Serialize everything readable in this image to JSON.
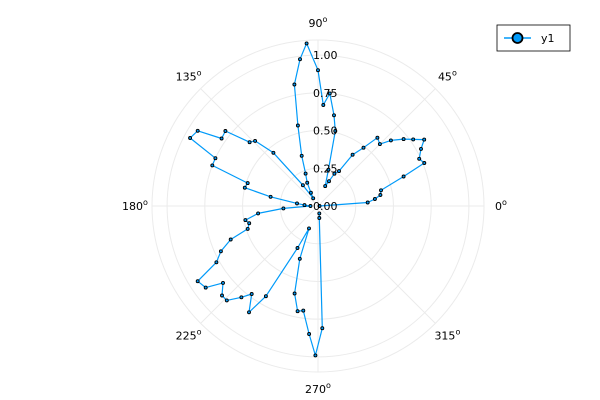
{
  "chart_data": {
    "type": "polar-line",
    "angular_unit": "degrees",
    "angle_ticks": [
      {
        "deg": 0,
        "label": "0",
        "sup": "o"
      },
      {
        "deg": 45,
        "label": "45",
        "sup": "o"
      },
      {
        "deg": 90,
        "label": "90",
        "sup": "o"
      },
      {
        "deg": 135,
        "label": "135",
        "sup": "o"
      },
      {
        "deg": 180,
        "label": "180",
        "sup": "o"
      },
      {
        "deg": 225,
        "label": "225",
        "sup": "o"
      },
      {
        "deg": 270,
        "label": "270",
        "sup": "o"
      },
      {
        "deg": 315,
        "label": "315",
        "sup": "o"
      }
    ],
    "radial_ticks": [
      {
        "value": 0.0,
        "label": "0.00"
      },
      {
        "value": 0.25,
        "label": "0.25"
      },
      {
        "value": 0.5,
        "label": "0.50"
      },
      {
        "value": 0.75,
        "label": "0.75"
      },
      {
        "value": 1.0,
        "label": "1.00"
      }
    ],
    "rlim": [
      0,
      1.1
    ],
    "grid": true,
    "legend_position": "top-right",
    "series": [
      {
        "name": "y1",
        "color": "#009af9",
        "marker": "circle",
        "points": [
          [
            0,
            0.01
          ],
          [
            4,
            0.33
          ],
          [
            7,
            0.38
          ],
          [
            10,
            0.42
          ],
          [
            14,
            0.43
          ],
          [
            19,
            0.6
          ],
          [
            22,
            0.76
          ],
          [
            25,
            0.74
          ],
          [
            29,
            0.78
          ],
          [
            32,
            0.83
          ],
          [
            35,
            0.77
          ],
          [
            38,
            0.72
          ],
          [
            42,
            0.65
          ],
          [
            45,
            0.58
          ],
          [
            49,
            0.6
          ],
          [
            52,
            0.49
          ],
          [
            56,
            0.41
          ],
          [
            59,
            0.27
          ],
          [
            63,
            0.24
          ],
          [
            66,
            0.18
          ],
          [
            70,
            0.14
          ],
          [
            74,
            0.25
          ],
          [
            77,
            0.51
          ],
          [
            80,
            0.61
          ],
          [
            84,
            0.75
          ],
          [
            87,
            0.67
          ],
          [
            90,
            0.9
          ],
          [
            94,
            1.08
          ],
          [
            97,
            0.98
          ],
          [
            101,
            0.82
          ],
          [
            104,
            0.55
          ],
          [
            108,
            0.35
          ],
          [
            111,
            0.23
          ],
          [
            115,
            0.17
          ],
          [
            118,
            0.1
          ],
          [
            122,
            0.06
          ],
          [
            126,
            0.17
          ],
          [
            130,
            0.46
          ],
          [
            134,
            0.6
          ],
          [
            137,
            0.62
          ],
          [
            141,
            0.79
          ],
          [
            145,
            0.78
          ],
          [
            148,
            0.94
          ],
          [
            152,
            0.96
          ],
          [
            155,
            0.75
          ],
          [
            159,
            0.75
          ],
          [
            162,
            0.49
          ],
          [
            166,
            0.5
          ],
          [
            169,
            0.32
          ],
          [
            173,
            0.14
          ],
          [
            176,
            0.09
          ],
          [
            180,
            0.05
          ],
          [
            184,
            0.23
          ],
          [
            187,
            0.4
          ],
          [
            191,
            0.49
          ],
          [
            194,
            0.47
          ],
          [
            198,
            0.49
          ],
          [
            201,
            0.62
          ],
          [
            205,
            0.71
          ],
          [
            209,
            0.77
          ],
          [
            212,
            0.94
          ],
          [
            216,
            0.92
          ],
          [
            219,
            0.81
          ],
          [
            223,
            0.87
          ],
          [
            226,
            0.87
          ],
          [
            230,
            0.79
          ],
          [
            233,
            0.73
          ],
          [
            237,
            0.84
          ],
          [
            240,
            0.69
          ],
          [
            244,
            0.31
          ],
          [
            248,
            0.16
          ],
          [
            251,
            0.37
          ],
          [
            255,
            0.6
          ],
          [
            259,
            0.71
          ],
          [
            262,
            0.7
          ],
          [
            266,
            0.85
          ],
          [
            269,
            0.99
          ],
          [
            272,
            0.81
          ],
          [
            276,
            0.08
          ],
          [
            280,
            0.05
          ]
        ]
      }
    ]
  }
}
